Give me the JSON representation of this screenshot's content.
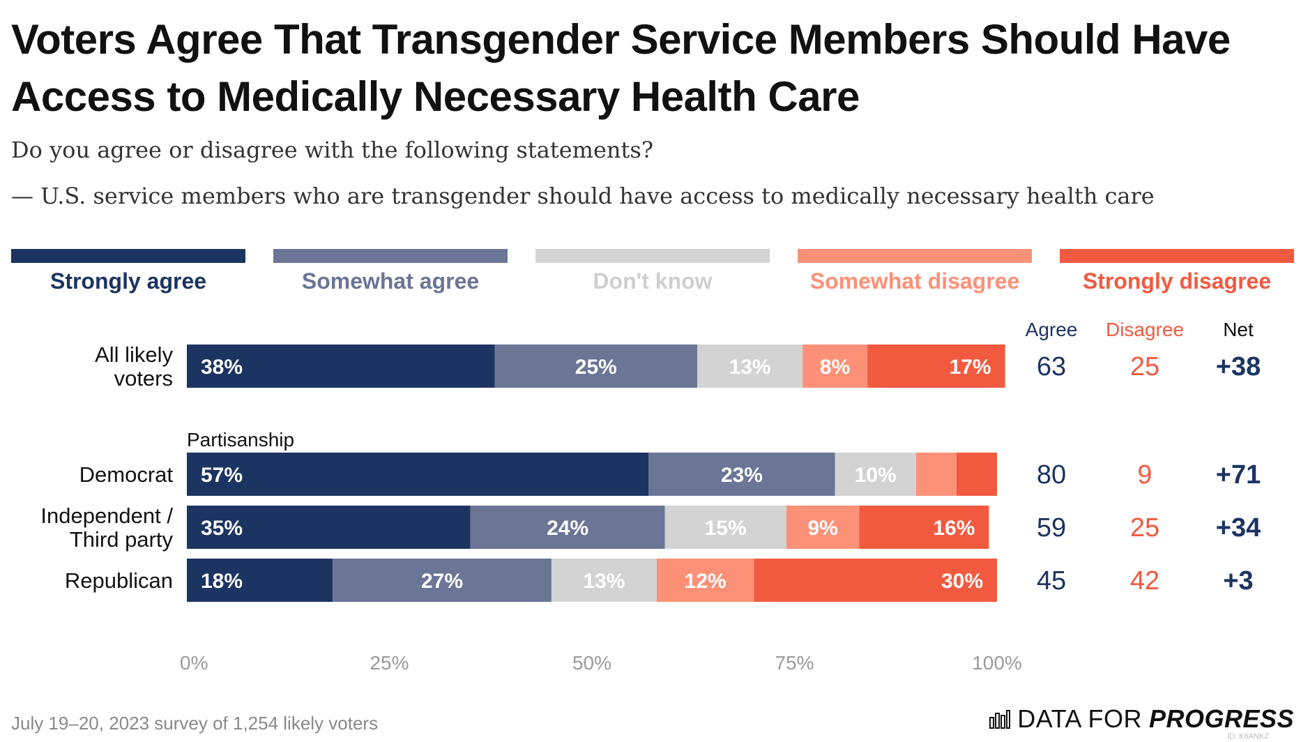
{
  "title": "Voters Agree That Transgender Service Members Should Have Access to Medically Necessary Health Care",
  "subtitle": "Do you agree or disagree with the following statements?",
  "statement": "— U.S. service members who are transgender should have access to medically necessary health care",
  "footer": {
    "note": "July 19–20, 2023 survey of 1,254 likely voters",
    "brand_light": "DATA FOR",
    "brand_bold": "PROGRESS",
    "credit": "ID: K6ANKZ"
  },
  "colors": {
    "strongly_agree": "#1c3461",
    "somewhat_agree": "#6b7596",
    "dont_know": "#d3d3d3",
    "somewhat_disagree": "#fc9177",
    "strongly_disagree": "#f25a40"
  },
  "chart_data": {
    "type": "bar",
    "orientation": "horizontal",
    "stacked": true,
    "series": [
      {
        "name": "Strongly agree",
        "color": "#1c3461",
        "values": [
          38,
          57,
          35,
          18
        ]
      },
      {
        "name": "Somewhat agree",
        "color": "#6b7596",
        "values": [
          25,
          23,
          24,
          27
        ]
      },
      {
        "name": "Don't know",
        "color": "#d3d3d3",
        "values": [
          13,
          10,
          15,
          13
        ]
      },
      {
        "name": "Somewhat disagree",
        "color": "#fc9177",
        "values": [
          8,
          5,
          9,
          12
        ]
      },
      {
        "name": "Strongly disagree",
        "color": "#f25a40",
        "values": [
          17,
          5,
          16,
          30
        ]
      }
    ],
    "labels": [
      [
        "38%",
        "25%",
        "13%",
        "8%",
        "17%"
      ],
      [
        "57%",
        "23%",
        "10%",
        "",
        ""
      ],
      [
        "35%",
        "24%",
        "15%",
        "9%",
        "16%"
      ],
      [
        "18%",
        "27%",
        "13%",
        "12%",
        "30%"
      ]
    ],
    "categories": [
      {
        "lines": [
          "All likely",
          "voters"
        ]
      },
      {
        "lines": [
          "Democrat"
        ]
      },
      {
        "lines": [
          "Independent /",
          "Third party"
        ]
      },
      {
        "lines": [
          "Republican"
        ]
      }
    ],
    "group_label": "Partisanship",
    "xticks": [
      "0%",
      "25%",
      "50%",
      "75%",
      "100%"
    ],
    "xlim": [
      0,
      100
    ],
    "summary_headers": {
      "agree": "Agree",
      "disagree": "Disagree",
      "net": "Net"
    },
    "summary": [
      {
        "agree": "63",
        "disagree": "25",
        "net": "+38"
      },
      {
        "agree": "80",
        "disagree": "9",
        "net": "+71"
      },
      {
        "agree": "59",
        "disagree": "25",
        "net": "+34"
      },
      {
        "agree": "45",
        "disagree": "42",
        "net": "+3"
      }
    ],
    "legend_placement": "top"
  }
}
